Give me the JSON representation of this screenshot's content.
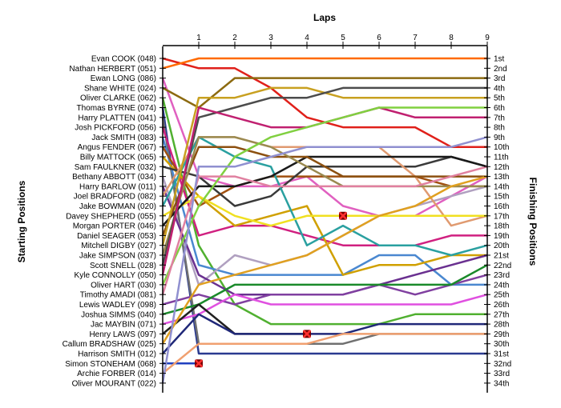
{
  "chart_data": {
    "type": "line",
    "title": "",
    "x_axis_label": "Laps",
    "left_axis_label": "Starting Positions",
    "right_axis_label": "Finishing Positions",
    "laps": [
      1,
      2,
      3,
      4,
      5,
      6,
      7,
      8,
      9
    ],
    "x_range": [
      0,
      9
    ],
    "y_range": [
      1,
      34
    ],
    "grid": false,
    "legend": "none",
    "finishing_labels": [
      "1st",
      "2nd",
      "3rd",
      "4th",
      "5th",
      "6th",
      "7th",
      "8th",
      "9th",
      "10th",
      "11th",
      "12th",
      "13th",
      "14th",
      "15th",
      "16th",
      "17th",
      "18th",
      "19th",
      "20th",
      "21st",
      "22nd",
      "23rd",
      "24th",
      "25th",
      "26th",
      "27th",
      "28th",
      "29th",
      "30th",
      "31st",
      "32nd",
      "33rd",
      "34th"
    ],
    "series": [
      {
        "name": "Evan COOK (048)",
        "color": "#e0201a",
        "positions": [
          1,
          2,
          2,
          4,
          7,
          8,
          8,
          8,
          10,
          10
        ]
      },
      {
        "name": "Nathan HERBERT (051)",
        "color": "#ff6a00",
        "positions": [
          2,
          1,
          1,
          1,
          1,
          1,
          1,
          1,
          1,
          1
        ]
      },
      {
        "name": "Ewan LONG (086)",
        "color": "#e060c0",
        "positions": [
          3,
          13,
          14,
          14,
          13,
          16,
          17,
          17,
          15,
          13
        ]
      },
      {
        "name": "Shane WHITE (024)",
        "color": "#8c6a10",
        "positions": [
          4,
          6,
          3,
          3,
          3,
          3,
          3,
          3,
          3,
          3
        ]
      },
      {
        "name": "Oliver CLARKE (062)",
        "color": "#50b030",
        "positions": [
          5,
          20,
          26,
          28,
          28,
          28,
          28,
          27,
          27,
          27
        ]
      },
      {
        "name": "Thomas BYRNE (074)",
        "color": "#2a3a90",
        "positions": [
          6,
          31,
          31,
          31,
          31,
          31,
          31,
          31,
          31,
          31
        ]
      },
      {
        "name": "Harry PLATTEN (041)",
        "color": "#707070",
        "positions": [
          7,
          30,
          30,
          30,
          30,
          30,
          29,
          29,
          29,
          29
        ]
      },
      {
        "name": "Josh PICKFORD (056)",
        "color": "#d02080",
        "positions": [
          8,
          19,
          18,
          18,
          19,
          20,
          20,
          20,
          19,
          19
        ]
      },
      {
        "name": "Jack SMITH (083)",
        "color": "#4a88d0",
        "positions": [
          9,
          22,
          23,
          23,
          23,
          23,
          21,
          21,
          24,
          24
        ]
      },
      {
        "name": "Angus FENDER (067)",
        "color": "#a05010",
        "positions": [
          10,
          16,
          14,
          13,
          13,
          13,
          13,
          13,
          14,
          14
        ]
      },
      {
        "name": "Billy MATTOCK (065)",
        "color": "#d0a000",
        "positions": [
          11,
          15,
          18,
          17,
          16,
          23,
          22,
          22,
          21,
          21
        ]
      },
      {
        "name": "Sam FAULKNER (032)",
        "color": "#3a3a3a",
        "positions": [
          12,
          13,
          16,
          15,
          12,
          12,
          12,
          12,
          11,
          12
        ]
      },
      {
        "name": "Bethany ABBOTT (034)",
        "color": "#b0a0c0",
        "positions": [
          13,
          24,
          21,
          22,
          21,
          19,
          17,
          16,
          15,
          14
        ]
      },
      {
        "name": "Harry BARLOW (011)",
        "color": "#6a3090",
        "positions": [
          14,
          23,
          25,
          25,
          25,
          25,
          24,
          23,
          22,
          21
        ]
      },
      {
        "name": "Joel BRADFORD (082)",
        "color": "#e09a70",
        "positions": [
          15,
          9,
          9,
          10,
          10,
          10,
          10,
          13,
          18,
          17
        ]
      },
      {
        "name": "Jake BOWMAN (020)",
        "color": "#2aa0a0",
        "positions": [
          16,
          9,
          11,
          12,
          20,
          18,
          20,
          20,
          21,
          20
        ]
      },
      {
        "name": "Davey SHEPHERD (055)",
        "color": "#f0e020",
        "positions": [
          17,
          15,
          17,
          18,
          17,
          17,
          17,
          17,
          17,
          17
        ]
      },
      {
        "name": "Morgan PORTER (046)",
        "color": "#1a1a1a",
        "positions": [
          18,
          14,
          14,
          13,
          11,
          11,
          11,
          11,
          11,
          12
        ]
      },
      {
        "name": "Daniel SEAGER (053)",
        "color": "#8c5010",
        "positions": [
          19,
          10,
          10,
          11,
          11,
          13,
          13,
          13,
          13,
          13
        ]
      },
      {
        "name": "Mitchell DIGBY (027)",
        "color": "#c8a020",
        "positions": [
          20,
          5,
          5,
          4,
          4,
          5,
          5,
          5,
          5,
          5
        ]
      },
      {
        "name": "Jake SIMPSON (037)",
        "color": "#9a8a50",
        "positions": [
          21,
          9,
          9,
          10,
          12,
          14,
          14,
          14,
          14,
          14
        ]
      },
      {
        "name": "Scott SNELL (028)",
        "color": "#4c4c4c",
        "positions": [
          22,
          7,
          6,
          5,
          5,
          4,
          4,
          4,
          4,
          4
        ]
      },
      {
        "name": "Kyle CONNOLLY (050)",
        "color": "#c02070",
        "positions": [
          23,
          6,
          7,
          8,
          8,
          7,
          6,
          7,
          7,
          7
        ]
      },
      {
        "name": "Oliver HART (030)",
        "color": "#80d040",
        "positions": [
          24,
          16,
          11,
          9,
          8,
          7,
          6,
          6,
          6,
          6
        ]
      },
      {
        "name": "Timothy AMADI (081)",
        "color": "#e080a0",
        "positions": [
          25,
          13,
          13,
          14,
          14,
          14,
          14,
          14,
          13,
          12
        ]
      },
      {
        "name": "Lewis WADLEY (098)",
        "color": "#8040a0",
        "positions": [
          26,
          25,
          26,
          25,
          25,
          25,
          24,
          25,
          24,
          23
        ]
      },
      {
        "name": "Joshua SIMMS (040)",
        "color": "#1a8a2a",
        "positions": [
          27,
          26,
          24,
          24,
          24,
          24,
          24,
          24,
          24,
          22
        ]
      },
      {
        "name": "Jac MAYBIN (071)",
        "color": "#e050e0",
        "positions": [
          28,
          27,
          25,
          26,
          26,
          26,
          26,
          26,
          26,
          25
        ]
      },
      {
        "name": "Henry LAWS (097)",
        "color": "#202020",
        "positions": [
          29,
          26,
          29,
          29,
          29
        ]
      },
      {
        "name": "Callum BRADSHAW (025)",
        "color": "#e0a020",
        "positions": [
          30,
          24,
          23,
          22,
          21,
          19,
          17,
          16,
          14,
          13
        ]
      },
      {
        "name": "Harrison SMITH (012)",
        "color": "#202878",
        "positions": [
          31,
          27,
          29,
          29,
          29,
          29,
          28,
          28,
          28,
          28
        ]
      },
      {
        "name": "Simon STONEHAM (068)",
        "color": "#2040c0",
        "positions": [
          32,
          32
        ]
      },
      {
        "name": "Archie FORBER (014)",
        "color": "#f0a070",
        "positions": [
          33,
          30,
          30,
          30,
          30,
          29,
          29,
          29,
          29,
          29
        ]
      },
      {
        "name": "Oliver MOURANT (022)",
        "color": "#9090d0",
        "positions": [
          34,
          12,
          12,
          11,
          10,
          10,
          10,
          10,
          10,
          9
        ]
      }
    ],
    "retirements": [
      {
        "lap": 1,
        "position": 32
      },
      {
        "lap": 4,
        "position": 29
      },
      {
        "lap": 5,
        "position": 17
      }
    ]
  }
}
